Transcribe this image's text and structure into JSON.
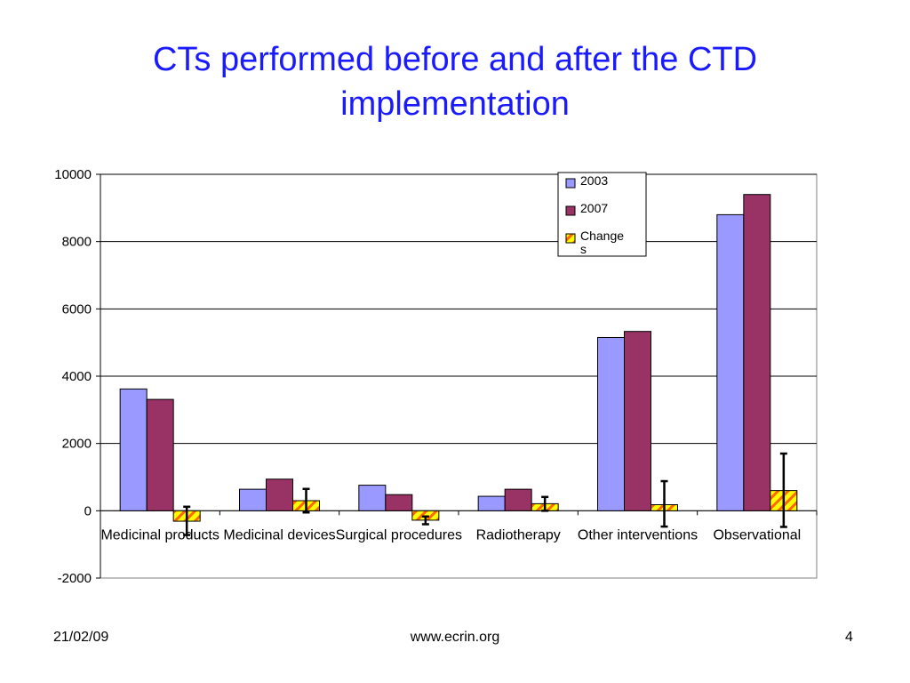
{
  "slide": {
    "title_line1": "CTs performed before and after the CTD",
    "title_line2": "implementation"
  },
  "footer": {
    "date": "21/02/09",
    "url": "www.ecrin.org",
    "page": "4"
  },
  "chart_data": {
    "type": "bar",
    "title": "",
    "xlabel": "",
    "ylabel": "",
    "ylim": [
      -2000,
      10000
    ],
    "yticks": [
      10000,
      8000,
      6000,
      4000,
      2000,
      0,
      -2000
    ],
    "grid": true,
    "legend_position": "top-right",
    "categories": [
      "Medicinal products",
      "Medicinal devices",
      "Surgical procedures",
      "Radiotherapy",
      "Other interventions",
      "Observational"
    ],
    "series": [
      {
        "name": "2003",
        "values": [
          3620,
          640,
          760,
          430,
          5150,
          8800
        ],
        "color": "#9999ff"
      },
      {
        "name": "2007",
        "values": [
          3310,
          940,
          480,
          640,
          5330,
          9400
        ],
        "color": "#993366"
      },
      {
        "name": "Changes",
        "values": [
          -310,
          300,
          -280,
          210,
          180,
          600
        ],
        "color": "#ffff00",
        "pattern_color": "#ff6600",
        "error_bars": [
          [
            -720,
            120
          ],
          [
            -50,
            650
          ],
          [
            -400,
            -170
          ],
          [
            0,
            410
          ],
          [
            -470,
            880
          ],
          [
            -480,
            1700
          ]
        ]
      }
    ],
    "legend_labels": [
      "2003",
      "2007",
      "Change",
      "s"
    ]
  }
}
